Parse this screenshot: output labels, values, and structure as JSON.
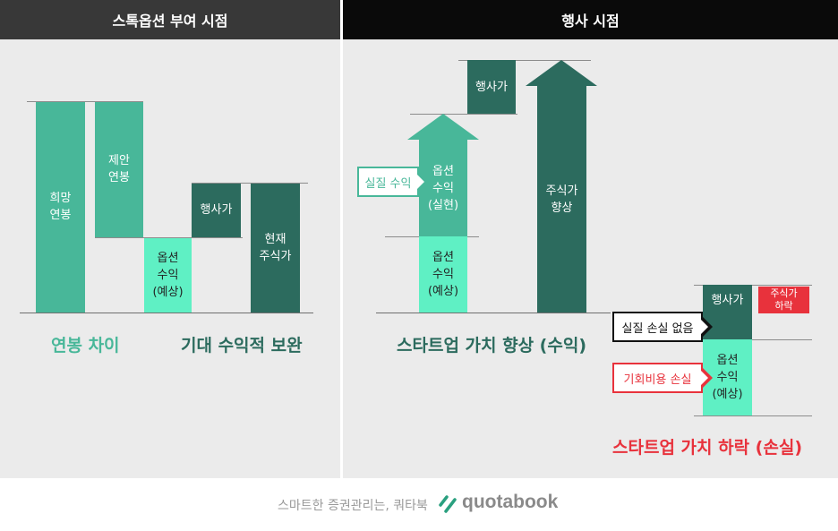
{
  "left": {
    "header": "스톡옵션 부여 시점",
    "desired_salary": [
      "희망",
      "연봉"
    ],
    "offered_salary": [
      "제안",
      "연봉"
    ],
    "option_gain_expected": [
      "옵션",
      "수익",
      "(예상)"
    ],
    "exercise_price": "행사가",
    "current_price": [
      "현재",
      "주식가"
    ],
    "caption_gap": "연봉 차이",
    "caption_compensate": "기대 수익적 보완"
  },
  "right": {
    "header": "행사 시점",
    "callout_realized": "실질 수익",
    "option_gain_realized": [
      "옵션",
      "수익",
      "(실현)"
    ],
    "option_gain_expected": [
      "옵션",
      "수익",
      "(예상)"
    ],
    "exercise_price": "행사가",
    "price_up": [
      "주식가",
      "향상"
    ],
    "caption_up": "스타트업 가치 향상 (수익)",
    "exercise_price_2": "행사가",
    "price_down": [
      "주식가",
      "하락"
    ],
    "callout_no_loss": "실질 손실 없음",
    "callout_opportunity_cost": "기회비용 손실",
    "option_gain_expected_2": [
      "옵션",
      "수익",
      "(예상)"
    ],
    "caption_down": "스타트업 가치 하락 (손실)"
  },
  "footer": {
    "tagline": "스마트한 증권관리는, 쿼타북",
    "brand": "quotabook"
  },
  "colors": {
    "light_green": "#48b799",
    "mint": "#5ff0c4",
    "dark_green": "#2c6b5e",
    "red": "#e8323c",
    "header_bg": "#383838",
    "header_bg_right": "#0a0a0a"
  }
}
